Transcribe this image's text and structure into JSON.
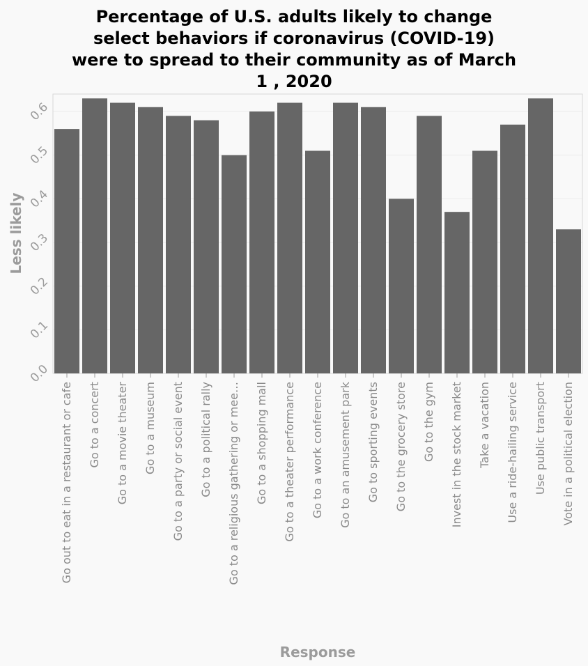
{
  "chart_data": {
    "type": "bar",
    "title": "Percentage of U.S. adults likely to change select behaviors if coronavirus (COVID-19) were to spread to their community as of March 1 , 2020",
    "title_lines": [
      "Percentage of U.S. adults likely to change",
      "select behaviors if coronavirus (COVID-19)",
      "were to spread to their community as of March",
      "1 , 2020"
    ],
    "xlabel": "Response",
    "ylabel": "Less likely",
    "ylim": [
      0,
      0.64
    ],
    "yticks": [
      "0.0",
      "0.1",
      "0.2",
      "0.3",
      "0.4",
      "0.5",
      "0.6"
    ],
    "grid": true,
    "categories": [
      "Go out to eat in a restaurant or cafe",
      "Go to a concert",
      "Go to a movie theater",
      "Go to a museum",
      "Go to a party or social event",
      "Go to a political rally",
      "Go to a religious gathering or mee…",
      "Go to a shopping mall",
      "Go to a theater performance",
      "Go to a work conference",
      "Go to an amusement park",
      "Go to sporting events",
      "Go to the grocery store",
      "Go to the gym",
      "Invest in the stock market",
      "Take a vacation",
      "Use a ride-hailing service",
      "Use public transport",
      "Vote in a political election"
    ],
    "values": [
      0.56,
      0.63,
      0.62,
      0.61,
      0.59,
      0.58,
      0.5,
      0.6,
      0.62,
      0.51,
      0.62,
      0.61,
      0.4,
      0.59,
      0.37,
      0.51,
      0.57,
      0.63,
      0.33
    ],
    "colors": {
      "bar": "#666666",
      "background": "#f9f9f9",
      "axis_text": "#9b9b9b"
    }
  }
}
